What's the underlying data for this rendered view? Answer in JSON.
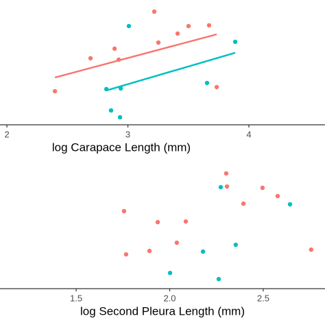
{
  "chart_data": [
    {
      "type": "scatter",
      "xlabel": "log Carapace Length (mm)",
      "xlim": [
        1.943,
        4.629
      ],
      "xticks": [
        2,
        3,
        4
      ],
      "ylim": [
        0,
        1
      ],
      "series": [
        {
          "type": "scatter",
          "color": "#F8766D",
          "x": [
            2.397,
            2.691,
            2.89,
            2.924,
            3.218,
            3.252,
            3.411,
            3.501,
            3.671,
            3.734
          ],
          "values": [
            0.269,
            0.533,
            0.61,
            0.522,
            0.907,
            0.659,
            0.731,
            0.791,
            0.797,
            0.302
          ]
        },
        {
          "type": "scatter",
          "color": "#00BFC4",
          "x": [
            3.008,
            2.822,
            2.861,
            2.935,
            2.941,
            3.654,
            3.887
          ],
          "values": [
            0.791,
            0.286,
            0.115,
            0.06,
            0.291,
            0.335,
            0.665
          ]
        },
        {
          "type": "line",
          "color": "#F8766D",
          "x": [
            2.397,
            3.734
          ],
          "values": [
            0.379,
            0.725
          ]
        },
        {
          "type": "line",
          "color": "#00BFC4",
          "x": [
            2.822,
            3.887
          ],
          "values": [
            0.275,
            0.577
          ]
        }
      ]
    },
    {
      "type": "scatter",
      "xlabel": "log Second Pleura Length (mm)",
      "xlim": [
        1.093,
        2.83
      ],
      "xticks": [
        1.5,
        {
          "value": 2,
          "label": "2.0"
        },
        2.5
      ],
      "ylim": [
        0,
        1
      ],
      "series": [
        {
          "type": "scatter",
          "color": "#F8766D",
          "x": [
            1.756,
            1.767,
            1.892,
            1.936,
            2.038,
            2.086,
            2.302,
            2.306,
            2.394,
            2.496,
            2.577,
            2.756
          ],
          "values": [
            0.592,
            0.262,
            0.288,
            0.508,
            0.351,
            0.513,
            0.88,
            0.78,
            0.649,
            0.77,
            0.707,
            0.298
          ]
        },
        {
          "type": "scatter",
          "color": "#00BFC4",
          "x": [
            2.002,
            2.178,
            2.262,
            2.273,
            2.353,
            2.643
          ],
          "values": [
            0.12,
            0.283,
            0.073,
            0.775,
            0.335,
            0.644
          ]
        }
      ]
    }
  ]
}
